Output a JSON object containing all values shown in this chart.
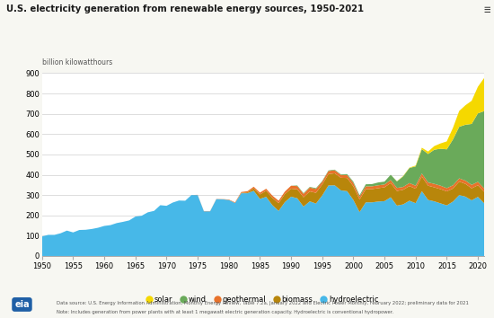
{
  "title": "U.S. electricity generation from renewable energy sources, 1950-2021",
  "ylabel": "billion kilowatthours",
  "ylim": [
    0,
    900
  ],
  "yticks": [
    0,
    100,
    200,
    300,
    400,
    500,
    600,
    700,
    800,
    900
  ],
  "xlim": [
    1950,
    2021
  ],
  "xticks": [
    1950,
    1955,
    1960,
    1965,
    1970,
    1975,
    1980,
    1985,
    1990,
    1995,
    2000,
    2005,
    2010,
    2015,
    2020
  ],
  "bg_color": "#f7f7f2",
  "plot_bg_color": "#ffffff",
  "colors": {
    "hydroelectric": "#47b8e8",
    "geothermal": "#e8722a",
    "biomass": "#b8860b",
    "wind": "#6aaa5a",
    "solar": "#f5d800"
  },
  "note_line1": "Data source: U.S. Energy Information Administration, Monthly Energy Review, Table 7.2a, January 2022 and Electric Power Monthly, February 2022; preliminary data for 2021",
  "note_line2": "Note: Includes generation from power plants with at least 1 megawatt electric generation capacity. Hydroelectric is conventional hydropower.",
  "menu_icon": "≡",
  "years": [
    1950,
    1951,
    1952,
    1953,
    1954,
    1955,
    1956,
    1957,
    1958,
    1959,
    1960,
    1961,
    1962,
    1963,
    1964,
    1965,
    1966,
    1967,
    1968,
    1969,
    1970,
    1971,
    1972,
    1973,
    1974,
    1975,
    1976,
    1977,
    1978,
    1979,
    1980,
    1981,
    1982,
    1983,
    1984,
    1985,
    1986,
    1987,
    1988,
    1989,
    1990,
    1991,
    1992,
    1993,
    1994,
    1995,
    1996,
    1997,
    1998,
    1999,
    2000,
    2001,
    2002,
    2003,
    2004,
    2005,
    2006,
    2007,
    2008,
    2009,
    2010,
    2011,
    2012,
    2013,
    2014,
    2015,
    2016,
    2017,
    2018,
    2019,
    2020,
    2021
  ],
  "hydroelectric": [
    96,
    104,
    104,
    112,
    125,
    116,
    128,
    129,
    133,
    139,
    148,
    152,
    162,
    168,
    175,
    194,
    198,
    215,
    222,
    250,
    247,
    263,
    273,
    272,
    300,
    300,
    220,
    220,
    280,
    279,
    276,
    261,
    309,
    309,
    321,
    281,
    291,
    250,
    222,
    265,
    292,
    284,
    243,
    269,
    258,
    298,
    347,
    348,
    323,
    319,
    276,
    216,
    264,
    264,
    268,
    270,
    289,
    248,
    254,
    272,
    260,
    319,
    276,
    269,
    259,
    249,
    268,
    300,
    292,
    274,
    291,
    260
  ],
  "geothermal": [
    0,
    0,
    0,
    0,
    0,
    0,
    0,
    0,
    0,
    0,
    0,
    0,
    0,
    0,
    0,
    0,
    0,
    0,
    0,
    0,
    0,
    0,
    0,
    0,
    0,
    1,
    1,
    1,
    1,
    1,
    2,
    3,
    4,
    6,
    8,
    9,
    10,
    11,
    12,
    12,
    15,
    16,
    17,
    19,
    19,
    14,
    15,
    15,
    14,
    14,
    17,
    14,
    14,
    14,
    14,
    14,
    15,
    15,
    14,
    15,
    15,
    15,
    16,
    17,
    17,
    16,
    16,
    16,
    16,
    17,
    17,
    17
  ],
  "biomass": [
    0,
    0,
    0,
    0,
    0,
    0,
    0,
    0,
    0,
    0,
    0,
    0,
    0,
    0,
    0,
    0,
    0,
    0,
    0,
    0,
    0,
    0,
    0,
    0,
    0,
    0,
    0,
    0,
    0,
    0,
    0,
    0,
    2,
    4,
    12,
    22,
    30,
    36,
    38,
    40,
    39,
    44,
    46,
    49,
    53,
    54,
    56,
    59,
    62,
    65,
    67,
    62,
    65,
    65,
    66,
    68,
    70,
    72,
    72,
    72,
    71,
    72,
    70,
    69,
    70,
    69,
    64,
    66,
    63,
    59,
    57,
    56
  ],
  "wind": [
    0,
    0,
    0,
    0,
    0,
    0,
    0,
    0,
    0,
    0,
    0,
    0,
    0,
    0,
    0,
    0,
    0,
    0,
    0,
    0,
    0,
    0,
    0,
    0,
    0,
    0,
    0,
    0,
    0,
    0,
    0,
    0,
    0,
    0,
    0,
    0,
    0,
    0,
    0,
    0,
    0,
    3,
    3,
    3,
    4,
    3,
    3,
    3,
    3,
    5,
    6,
    7,
    10,
    11,
    14,
    14,
    26,
    32,
    52,
    74,
    95,
    120,
    140,
    168,
    182,
    191,
    226,
    254,
    275,
    300,
    337,
    380
  ],
  "solar": [
    0,
    0,
    0,
    0,
    0,
    0,
    0,
    0,
    0,
    0,
    0,
    0,
    0,
    0,
    0,
    0,
    0,
    0,
    0,
    0,
    0,
    0,
    0,
    0,
    0,
    0,
    0,
    0,
    0,
    0,
    0,
    0,
    0,
    0,
    0,
    0,
    0,
    0,
    0,
    0,
    0,
    0,
    0,
    0,
    0,
    0,
    0,
    0,
    0,
    0,
    0,
    0,
    0,
    0,
    0,
    0,
    0,
    1,
    2,
    2,
    4,
    7,
    12,
    18,
    26,
    39,
    57,
    78,
    96,
    114,
    131,
    163
  ]
}
